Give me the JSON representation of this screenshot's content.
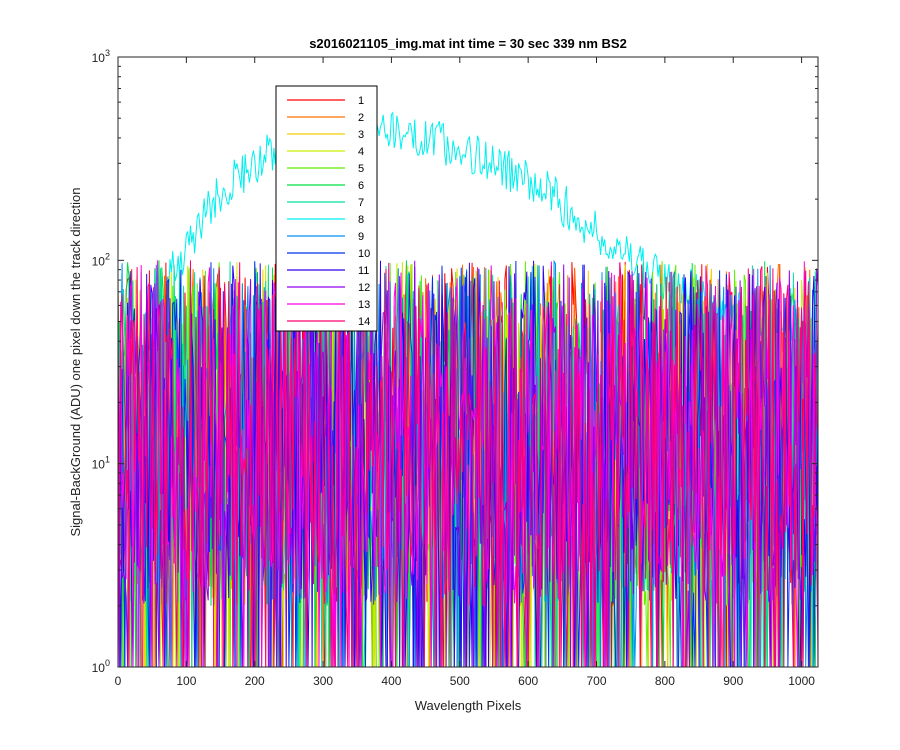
{
  "chart_data": {
    "type": "line",
    "title": "s2016021105_img.mat int time = 30 sec  339 nm BS2",
    "xlabel": "Wavelength Pixels",
    "ylabel": "Signal-BackGround (ADU) one pixel down the track direction",
    "xlim": [
      0,
      1024
    ],
    "ylim": [
      1,
      1000
    ],
    "yscale": "log",
    "grid": false,
    "legend_position": "top-left-inside",
    "x_ticks": [
      "0",
      "100",
      "200",
      "300",
      "400",
      "500",
      "600",
      "700",
      "800",
      "900",
      "1000"
    ],
    "y_ticks": [
      {
        "base": "10",
        "exp": "0"
      },
      {
        "base": "10",
        "exp": "1"
      },
      {
        "base": "10",
        "exp": "2"
      },
      {
        "base": "10",
        "exp": "3"
      }
    ],
    "noise_band": {
      "typical_range_adu": [
        2,
        100
      ],
      "description_value_floor": 1
    },
    "series": [
      {
        "name": "1",
        "color": "#ff0000"
      },
      {
        "name": "2",
        "color": "#ff7000"
      },
      {
        "name": "3",
        "color": "#f0d000"
      },
      {
        "name": "4",
        "color": "#c8f000"
      },
      {
        "name": "5",
        "color": "#60ee00"
      },
      {
        "name": "6",
        "color": "#00e040"
      },
      {
        "name": "7",
        "color": "#00e0a0"
      },
      {
        "name": "8",
        "color": "#00f0f0",
        "profile": {
          "x": [
            0,
            30,
            60,
            100,
            150,
            200,
            250,
            300,
            350,
            400,
            450,
            500,
            550,
            600,
            650,
            700,
            750,
            800,
            850,
            900,
            950,
            1000,
            1024
          ],
          "y": [
            15,
            35,
            70,
            110,
            220,
            300,
            380,
            420,
            470,
            450,
            400,
            350,
            300,
            250,
            190,
            140,
            100,
            80,
            70,
            60,
            50,
            45,
            40
          ]
        }
      },
      {
        "name": "9",
        "color": "#0090f0"
      },
      {
        "name": "10",
        "color": "#0030f0"
      },
      {
        "name": "11",
        "color": "#3000f0"
      },
      {
        "name": "12",
        "color": "#9000f0"
      },
      {
        "name": "13",
        "color": "#ff00e0"
      },
      {
        "name": "14",
        "color": "#ff0070"
      }
    ]
  }
}
